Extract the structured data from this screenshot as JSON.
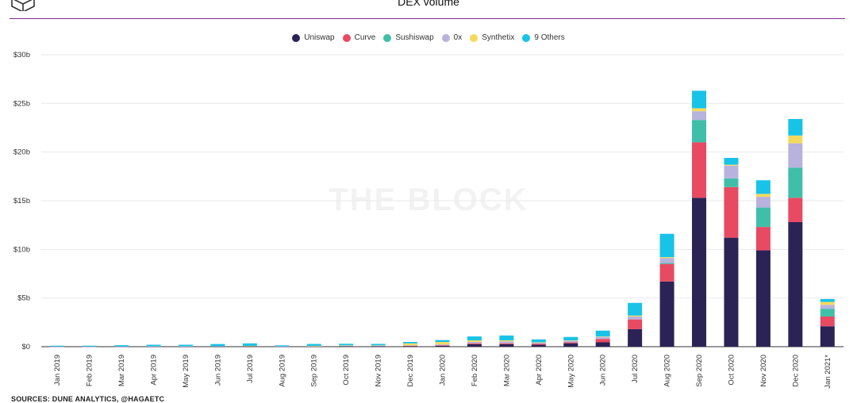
{
  "title": "DEX volume",
  "watermark": "THE BLOCK",
  "source": "SOURCES: DUNE ANALYTICS, @HAGAETC",
  "logo_icon": "cube-outline-icon",
  "colors": {
    "rule": "#7b2a8c",
    "grid": "#e9e9e9",
    "axis": "#333333"
  },
  "chart_data": {
    "type": "bar",
    "stacked": true,
    "title": "DEX volume",
    "xlabel": "",
    "ylabel": "",
    "ylim": [
      0,
      30
    ],
    "y_unit": "billion USD",
    "y_ticks": [
      "$0",
      "$5b",
      "$10b",
      "$15b",
      "$20b",
      "$25b",
      "$30b"
    ],
    "grid": true,
    "legend_position": "top-center",
    "categories": [
      "Jan 2019",
      "Feb 2019",
      "Mar 2019",
      "Apr 2019",
      "May 2019",
      "Jun 2019",
      "Jul 2019",
      "Aug 2019",
      "Sep 2019",
      "Oct 2019",
      "Nov 2019",
      "Dec 2019",
      "Jan 2020",
      "Feb 2020",
      "Mar 2020",
      "Apr 2020",
      "May 2020",
      "Jun 2020",
      "Jul 2020",
      "Aug 2020",
      "Sep 2020",
      "Oct 2020",
      "Nov 2020",
      "Dec 2020",
      "Jan 2021*"
    ],
    "series": [
      {
        "name": "Uniswap",
        "color": "#2b2356",
        "values": [
          0.01,
          0.01,
          0.02,
          0.03,
          0.03,
          0.04,
          0.05,
          0.02,
          0.03,
          0.05,
          0.04,
          0.07,
          0.1,
          0.25,
          0.25,
          0.2,
          0.35,
          0.45,
          1.8,
          6.7,
          15.3,
          11.2,
          9.9,
          12.8,
          2.1
        ]
      },
      {
        "name": "Curve",
        "color": "#e84a62",
        "values": [
          0,
          0,
          0,
          0,
          0,
          0,
          0,
          0,
          0,
          0,
          0,
          0.02,
          0.05,
          0.1,
          0.1,
          0.1,
          0.1,
          0.35,
          1.0,
          1.8,
          5.7,
          5.2,
          2.4,
          2.5,
          1.0
        ]
      },
      {
        "name": "Sushiswap",
        "color": "#40bfa8",
        "values": [
          0,
          0,
          0,
          0,
          0,
          0,
          0,
          0,
          0,
          0,
          0,
          0,
          0,
          0,
          0,
          0,
          0,
          0,
          0,
          0.1,
          2.3,
          0.9,
          2.0,
          3.1,
          0.8
        ]
      },
      {
        "name": "0x",
        "color": "#b8b2de",
        "values": [
          0.01,
          0.01,
          0.01,
          0.02,
          0.02,
          0.03,
          0.03,
          0.02,
          0.03,
          0.05,
          0.05,
          0.05,
          0.08,
          0.15,
          0.2,
          0.1,
          0.15,
          0.2,
          0.3,
          0.5,
          0.9,
          1.3,
          1.1,
          2.5,
          0.4
        ]
      },
      {
        "name": "Synthetix",
        "color": "#f4da5b",
        "values": [
          0,
          0,
          0,
          0,
          0,
          0,
          0.01,
          0,
          0.02,
          0.05,
          0.05,
          0.2,
          0.25,
          0.15,
          0.1,
          0.05,
          0.05,
          0.05,
          0.1,
          0.1,
          0.3,
          0.1,
          0.3,
          0.8,
          0.3
        ]
      },
      {
        "name": "9 Others",
        "color": "#18c3e8",
        "values": [
          0.08,
          0.08,
          0.12,
          0.15,
          0.15,
          0.2,
          0.25,
          0.1,
          0.2,
          0.15,
          0.15,
          0.15,
          0.2,
          0.4,
          0.5,
          0.3,
          0.35,
          0.6,
          1.3,
          2.4,
          1.8,
          0.7,
          1.4,
          1.7,
          0.3
        ]
      }
    ]
  }
}
